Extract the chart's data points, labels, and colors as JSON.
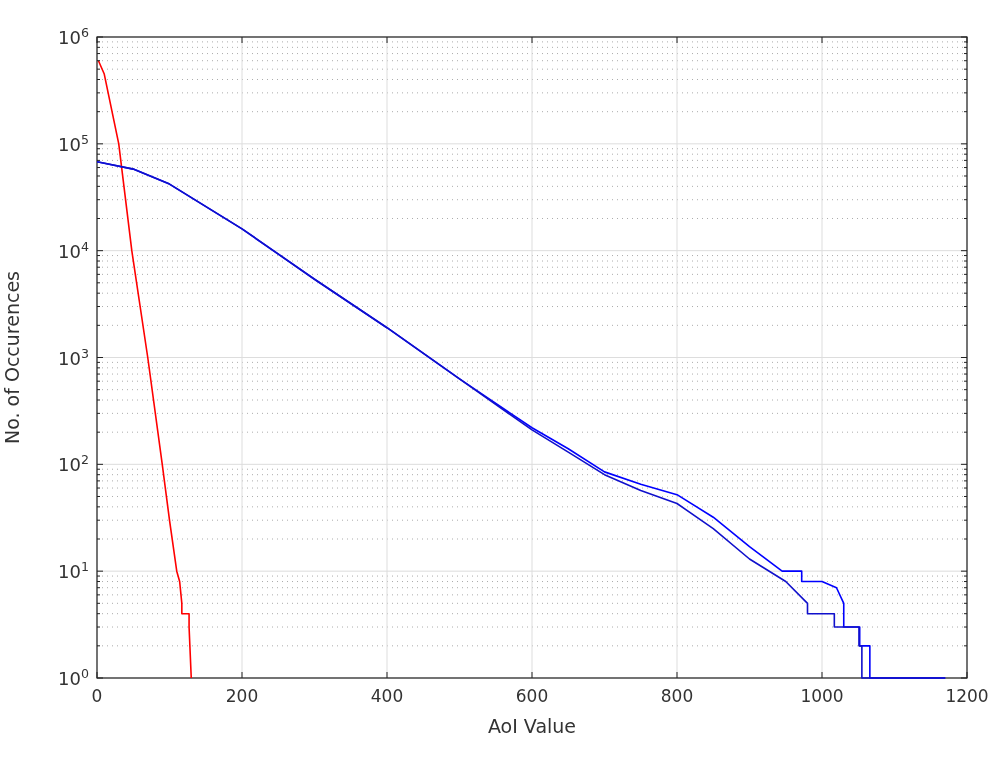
{
  "chart_data": {
    "type": "line",
    "xlabel": "AoI Value",
    "ylabel": "No. of Occurences",
    "log": "y",
    "grid": true,
    "xlim": [
      0,
      1200
    ],
    "xticks": [
      0,
      200,
      400,
      600,
      800,
      1000,
      1200
    ],
    "ylim": [
      1,
      1000000
    ],
    "yticks": [
      {
        "value": 1,
        "label": "10$^{0}$"
      },
      {
        "value": 10,
        "label": "10$^{1}$"
      },
      {
        "value": 100,
        "label": "10$^{2}$"
      },
      {
        "value": 1000,
        "label": "10$^{3}$"
      },
      {
        "value": 10000,
        "label": "10$^{4}$"
      },
      {
        "value": 100000,
        "label": "10$^{5}$"
      },
      {
        "value": 1000000,
        "label": "10$^{6}$"
      }
    ],
    "series": [
      {
        "color": "#ff0000",
        "x": [
          2,
          10,
          30,
          48,
          70,
          90,
          100,
          110,
          114,
          117,
          117,
          127,
          127,
          130
        ],
        "values": [
          600000,
          450000,
          100000,
          10000,
          1000,
          100,
          30,
          10,
          8,
          5,
          4,
          4,
          3,
          1
        ]
      },
      {
        "color": "#0000ff",
        "x": [
          0,
          50,
          100,
          200,
          300,
          400,
          500,
          600,
          650,
          700,
          750,
          800,
          850,
          900,
          945,
          972,
          972,
          1000,
          1020,
          1030,
          1030,
          1052,
          1052,
          1066,
          1066,
          1170
        ],
        "values": [
          68000,
          58000,
          42000,
          16000,
          5400,
          1900,
          630,
          220,
          140,
          85,
          65,
          52,
          32,
          17,
          10,
          10,
          8,
          8,
          7,
          5,
          3,
          3,
          2,
          2,
          1,
          1
        ]
      },
      {
        "color": "#1010cc",
        "x": [
          0,
          50,
          100,
          200,
          300,
          400,
          500,
          600,
          650,
          700,
          750,
          800,
          850,
          900,
          950,
          980,
          980,
          1017,
          1017,
          1051,
          1051,
          1055,
          1055,
          1170
        ],
        "values": [
          68000,
          58000,
          42000,
          16000,
          5400,
          1900,
          630,
          210,
          130,
          80,
          57,
          43,
          25,
          13,
          8,
          5,
          4,
          4,
          3,
          3,
          2,
          2,
          1,
          1
        ]
      }
    ]
  }
}
